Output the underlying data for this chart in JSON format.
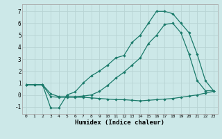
{
  "xlabel": "Humidex (Indice chaleur)",
  "background_color": "#cce8e8",
  "grid_color": "#b8d4d4",
  "line_color": "#1a7a6a",
  "xlim": [
    -0.5,
    23.5
  ],
  "ylim": [
    -1.6,
    7.6
  ],
  "xticks": [
    0,
    1,
    2,
    3,
    4,
    5,
    6,
    7,
    8,
    9,
    10,
    11,
    12,
    13,
    14,
    15,
    16,
    17,
    18,
    19,
    20,
    21,
    22,
    23
  ],
  "yticks": [
    -1,
    0,
    1,
    2,
    3,
    4,
    5,
    6,
    7
  ],
  "line1_x": [
    0,
    1,
    2,
    3,
    4,
    5,
    6,
    7,
    8,
    9,
    10,
    11,
    12,
    13,
    14,
    15,
    16,
    17,
    18,
    19,
    20,
    21,
    22,
    23
  ],
  "line1_y": [
    0.85,
    0.85,
    0.85,
    -1.1,
    -1.1,
    0.0,
    0.25,
    1.0,
    1.6,
    2.0,
    2.5,
    3.1,
    3.3,
    4.4,
    5.0,
    6.0,
    7.0,
    7.0,
    6.8,
    6.0,
    5.2,
    3.4,
    1.2,
    0.35
  ],
  "line2_x": [
    0,
    1,
    2,
    3,
    4,
    5,
    6,
    7,
    8,
    9,
    10,
    11,
    12,
    13,
    14,
    15,
    16,
    17,
    18,
    19,
    20,
    21,
    22,
    23
  ],
  "line2_y": [
    0.85,
    0.85,
    0.85,
    0.1,
    -0.15,
    -0.15,
    -0.15,
    -0.1,
    0.0,
    0.3,
    0.8,
    1.4,
    1.9,
    2.5,
    3.1,
    4.3,
    5.0,
    5.9,
    6.0,
    5.2,
    3.4,
    1.2,
    0.35,
    0.35
  ],
  "line3_x": [
    0,
    1,
    2,
    3,
    4,
    5,
    6,
    7,
    8,
    9,
    10,
    11,
    12,
    13,
    14,
    15,
    16,
    17,
    18,
    19,
    20,
    21,
    22,
    23
  ],
  "line3_y": [
    0.85,
    0.85,
    0.85,
    -0.15,
    -0.2,
    -0.2,
    -0.2,
    -0.2,
    -0.25,
    -0.3,
    -0.35,
    -0.4,
    -0.4,
    -0.45,
    -0.5,
    -0.45,
    -0.4,
    -0.35,
    -0.3,
    -0.2,
    -0.1,
    0.0,
    0.15,
    0.3
  ]
}
